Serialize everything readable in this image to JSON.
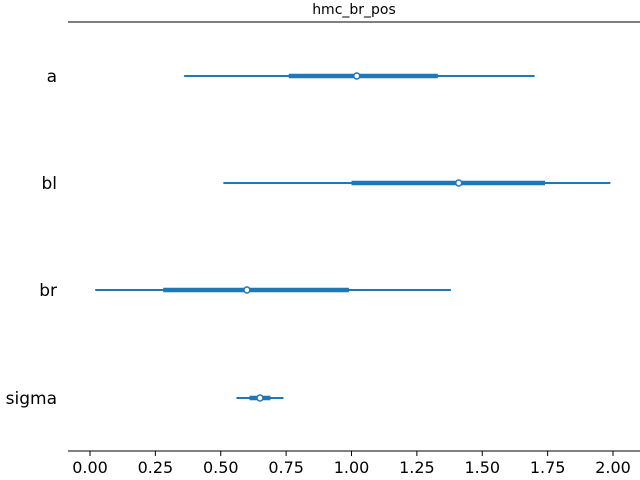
{
  "chart_data": {
    "type": "forest",
    "title": "hmc_br_pos",
    "xlabel": "",
    "ylabel": "",
    "xlim": [
      -0.08,
      2.1
    ],
    "xticks": [
      0.0,
      0.25,
      0.5,
      0.75,
      1.0,
      1.25,
      1.5,
      1.75,
      2.0
    ],
    "xtick_labels": [
      "0.00",
      "0.25",
      "0.50",
      "0.75",
      "1.00",
      "1.25",
      "1.50",
      "1.75",
      "2.00"
    ],
    "grid": false,
    "series_color": "#1f77b4",
    "parameters": [
      {
        "label": "a",
        "hdi_low": 0.36,
        "q_low": 0.76,
        "median": 1.02,
        "q_high": 1.33,
        "hdi_high": 1.7
      },
      {
        "label": "bl",
        "hdi_low": 0.51,
        "q_low": 1.0,
        "median": 1.41,
        "q_high": 1.74,
        "hdi_high": 1.99
      },
      {
        "label": "br",
        "hdi_low": 0.02,
        "q_low": 0.28,
        "median": 0.6,
        "q_high": 0.99,
        "hdi_high": 1.38
      },
      {
        "label": "sigma",
        "hdi_low": 0.56,
        "q_low": 0.61,
        "median": 0.65,
        "q_high": 0.69,
        "hdi_high": 0.74
      }
    ]
  }
}
